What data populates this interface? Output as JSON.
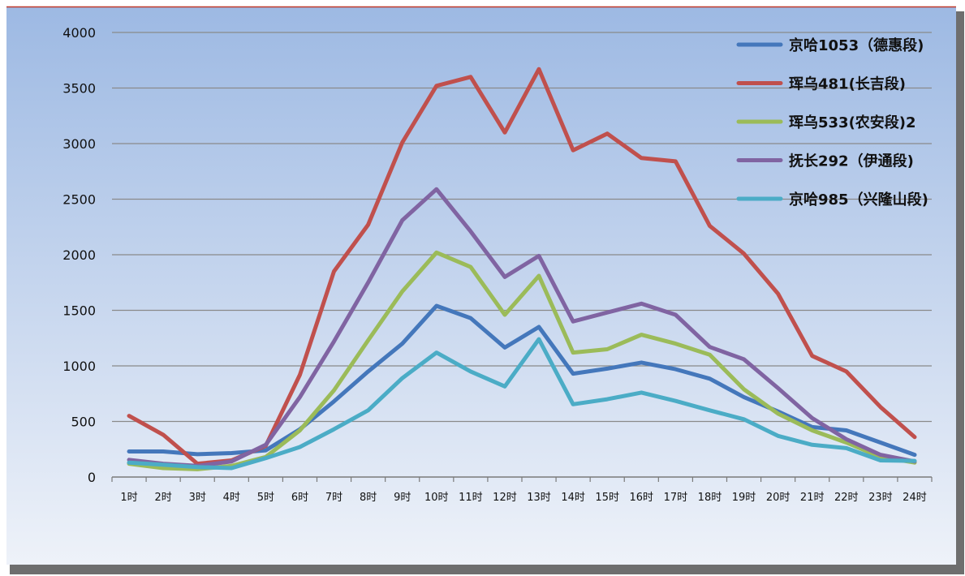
{
  "colors": {
    "background_top": "#9db9e3",
    "background_bottom": "#eef2f9",
    "gridline": "#8a8a8a",
    "axis": "#7a7a7a",
    "border_accent": "#c0392b"
  },
  "chart_data": {
    "type": "line",
    "categories": [
      "1时",
      "2时",
      "3时",
      "4时",
      "5时",
      "6时",
      "7时",
      "8时",
      "9时",
      "10时",
      "11时",
      "12时",
      "13时",
      "14时",
      "15时",
      "16时",
      "17时",
      "18时",
      "19时",
      "20时",
      "21时",
      "22时",
      "23时",
      "24时"
    ],
    "series": [
      {
        "name": "京哈1053（德惠段)",
        "color": "#4477bb",
        "values": [
          230,
          230,
          205,
          215,
          240,
          430,
          680,
          950,
          1200,
          1540,
          1430,
          1165,
          1350,
          930,
          975,
          1030,
          970,
          885,
          720,
          590,
          450,
          420,
          310,
          200
        ]
      },
      {
        "name": "珲乌481(长吉段)",
        "color": "#c0504d",
        "values": [
          550,
          380,
          120,
          150,
          280,
          920,
          1850,
          2270,
          3010,
          3520,
          3600,
          3100,
          3670,
          2940,
          3090,
          2870,
          2840,
          2260,
          2010,
          1650,
          1090,
          950,
          630,
          360
        ]
      },
      {
        "name": "珲乌533(农安段)2",
        "color": "#9bbb59",
        "values": [
          120,
          80,
          70,
          100,
          180,
          420,
          780,
          1230,
          1670,
          2020,
          1890,
          1460,
          1810,
          1120,
          1150,
          1280,
          1200,
          1100,
          790,
          570,
          420,
          310,
          180,
          130
        ]
      },
      {
        "name": "抚长292（伊通段)",
        "color": "#8064a2",
        "values": [
          155,
          120,
          100,
          140,
          290,
          720,
          1220,
          1750,
          2310,
          2590,
          2210,
          1800,
          1990,
          1400,
          1480,
          1560,
          1460,
          1170,
          1060,
          800,
          530,
          340,
          200,
          140
        ]
      },
      {
        "name": "京哈985（兴隆山段)",
        "color": "#4bacc6",
        "values": [
          130,
          110,
          90,
          80,
          170,
          270,
          430,
          600,
          890,
          1120,
          950,
          815,
          1240,
          655,
          700,
          760,
          685,
          600,
          520,
          370,
          290,
          260,
          150,
          145
        ]
      }
    ],
    "yticks": [
      0,
      500,
      1000,
      1500,
      2000,
      2500,
      3000,
      3500,
      4000
    ],
    "ylim": [
      0,
      4000
    ],
    "grid": true,
    "legend": "top-right"
  }
}
